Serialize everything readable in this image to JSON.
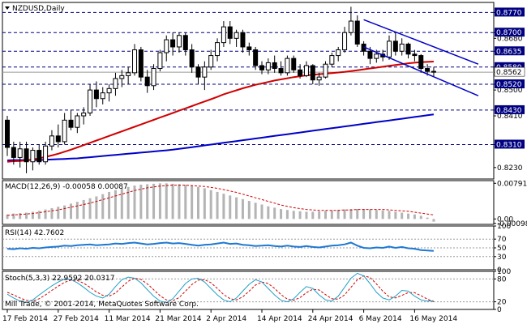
{
  "chart_data": [
    {
      "type": "candlestick",
      "symbol_label": "NZDUSD,Daily",
      "ylim": [
        0.819,
        0.8805
      ],
      "price_ticks": [
        "0.8770",
        "0.8700",
        "0.8680",
        "0.8635",
        "0.8580",
        "0.8562",
        "0.8520",
        "0.8500",
        "0.8430",
        "0.8410",
        "0.8310",
        "0.8230"
      ],
      "key_levels": [
        {
          "value": 0.877,
          "label": "0.8770"
        },
        {
          "value": 0.87,
          "label": "0.8700"
        },
        {
          "value": 0.8635,
          "label": "0.8635"
        },
        {
          "value": 0.858,
          "label": "0.8580"
        },
        {
          "value": 0.852,
          "label": "0.8520"
        },
        {
          "value": 0.843,
          "label": "0.8430"
        },
        {
          "value": 0.831,
          "label": "0.8310"
        }
      ],
      "current_price": {
        "value": 0.8562,
        "label": "0.8562"
      },
      "x_labels": [
        "17 Feb 2014",
        "27 Feb 2014",
        "11 Mar 2014",
        "21 Mar 2014",
        "2 Apr 2014",
        "14 Apr 2014",
        "24 Apr 2014",
        "6 May 2014",
        "16 May 2014"
      ],
      "x_label_bars": [
        0,
        8,
        16,
        24,
        32,
        40,
        48,
        56,
        64
      ],
      "candles": [
        {
          "o": 0.8395,
          "h": 0.841,
          "l": 0.827,
          "c": 0.83
        },
        {
          "o": 0.83,
          "h": 0.832,
          "l": 0.824,
          "c": 0.8265
        },
        {
          "o": 0.8265,
          "h": 0.832,
          "l": 0.823,
          "c": 0.8295
        },
        {
          "o": 0.8295,
          "h": 0.832,
          "l": 0.821,
          "c": 0.825
        },
        {
          "o": 0.825,
          "h": 0.83,
          "l": 0.822,
          "c": 0.829
        },
        {
          "o": 0.829,
          "h": 0.831,
          "l": 0.824,
          "c": 0.825
        },
        {
          "o": 0.825,
          "h": 0.832,
          "l": 0.824,
          "c": 0.8305
        },
        {
          "o": 0.8305,
          "h": 0.836,
          "l": 0.829,
          "c": 0.834
        },
        {
          "o": 0.834,
          "h": 0.838,
          "l": 0.83,
          "c": 0.832
        },
        {
          "o": 0.832,
          "h": 0.842,
          "l": 0.831,
          "c": 0.8395
        },
        {
          "o": 0.8395,
          "h": 0.843,
          "l": 0.836,
          "c": 0.837
        },
        {
          "o": 0.837,
          "h": 0.842,
          "l": 0.835,
          "c": 0.841
        },
        {
          "o": 0.841,
          "h": 0.844,
          "l": 0.838,
          "c": 0.842
        },
        {
          "o": 0.842,
          "h": 0.852,
          "l": 0.841,
          "c": 0.85
        },
        {
          "o": 0.85,
          "h": 0.853,
          "l": 0.844,
          "c": 0.847
        },
        {
          "o": 0.847,
          "h": 0.851,
          "l": 0.845,
          "c": 0.849
        },
        {
          "o": 0.849,
          "h": 0.852,
          "l": 0.846,
          "c": 0.8505
        },
        {
          "o": 0.8505,
          "h": 0.856,
          "l": 0.848,
          "c": 0.854
        },
        {
          "o": 0.854,
          "h": 0.857,
          "l": 0.851,
          "c": 0.855
        },
        {
          "o": 0.855,
          "h": 0.858,
          "l": 0.852,
          "c": 0.856
        },
        {
          "o": 0.856,
          "h": 0.866,
          "l": 0.855,
          "c": 0.864
        },
        {
          "o": 0.864,
          "h": 0.865,
          "l": 0.853,
          "c": 0.8545
        },
        {
          "o": 0.8545,
          "h": 0.857,
          "l": 0.849,
          "c": 0.8515
        },
        {
          "o": 0.8515,
          "h": 0.859,
          "l": 0.85,
          "c": 0.8575
        },
        {
          "o": 0.8575,
          "h": 0.864,
          "l": 0.8565,
          "c": 0.863
        },
        {
          "o": 0.863,
          "h": 0.869,
          "l": 0.86,
          "c": 0.8675
        },
        {
          "o": 0.8675,
          "h": 0.87,
          "l": 0.862,
          "c": 0.865
        },
        {
          "o": 0.865,
          "h": 0.87,
          "l": 0.863,
          "c": 0.869
        },
        {
          "o": 0.869,
          "h": 0.87,
          "l": 0.862,
          "c": 0.864
        },
        {
          "o": 0.864,
          "h": 0.866,
          "l": 0.856,
          "c": 0.858
        },
        {
          "o": 0.858,
          "h": 0.859,
          "l": 0.852,
          "c": 0.8545
        },
        {
          "o": 0.8545,
          "h": 0.86,
          "l": 0.85,
          "c": 0.858
        },
        {
          "o": 0.858,
          "h": 0.864,
          "l": 0.857,
          "c": 0.862
        },
        {
          "o": 0.862,
          "h": 0.868,
          "l": 0.86,
          "c": 0.8665
        },
        {
          "o": 0.8665,
          "h": 0.874,
          "l": 0.865,
          "c": 0.872
        },
        {
          "o": 0.872,
          "h": 0.874,
          "l": 0.866,
          "c": 0.868
        },
        {
          "o": 0.868,
          "h": 0.871,
          "l": 0.865,
          "c": 0.87
        },
        {
          "o": 0.87,
          "h": 0.871,
          "l": 0.863,
          "c": 0.865
        },
        {
          "o": 0.865,
          "h": 0.8665,
          "l": 0.862,
          "c": 0.864
        },
        {
          "o": 0.864,
          "h": 0.865,
          "l": 0.857,
          "c": 0.8585
        },
        {
          "o": 0.8585,
          "h": 0.86,
          "l": 0.8555,
          "c": 0.857
        },
        {
          "o": 0.857,
          "h": 0.861,
          "l": 0.8555,
          "c": 0.8595
        },
        {
          "o": 0.8595,
          "h": 0.862,
          "l": 0.856,
          "c": 0.8575
        },
        {
          "o": 0.8575,
          "h": 0.86,
          "l": 0.855,
          "c": 0.856
        },
        {
          "o": 0.856,
          "h": 0.862,
          "l": 0.855,
          "c": 0.861
        },
        {
          "o": 0.861,
          "h": 0.862,
          "l": 0.856,
          "c": 0.857
        },
        {
          "o": 0.857,
          "h": 0.859,
          "l": 0.854,
          "c": 0.855
        },
        {
          "o": 0.855,
          "h": 0.86,
          "l": 0.8545,
          "c": 0.8585
        },
        {
          "o": 0.8585,
          "h": 0.859,
          "l": 0.852,
          "c": 0.8535
        },
        {
          "o": 0.8535,
          "h": 0.856,
          "l": 0.8515,
          "c": 0.8545
        },
        {
          "o": 0.8545,
          "h": 0.86,
          "l": 0.854,
          "c": 0.859
        },
        {
          "o": 0.859,
          "h": 0.863,
          "l": 0.858,
          "c": 0.862
        },
        {
          "o": 0.862,
          "h": 0.865,
          "l": 0.86,
          "c": 0.864
        },
        {
          "o": 0.864,
          "h": 0.872,
          "l": 0.863,
          "c": 0.87
        },
        {
          "o": 0.87,
          "h": 0.879,
          "l": 0.869,
          "c": 0.874
        },
        {
          "o": 0.874,
          "h": 0.876,
          "l": 0.865,
          "c": 0.866
        },
        {
          "o": 0.866,
          "h": 0.867,
          "l": 0.862,
          "c": 0.8635
        },
        {
          "o": 0.8635,
          "h": 0.865,
          "l": 0.859,
          "c": 0.861
        },
        {
          "o": 0.861,
          "h": 0.864,
          "l": 0.8595,
          "c": 0.8625
        },
        {
          "o": 0.8625,
          "h": 0.864,
          "l": 0.86,
          "c": 0.8615
        },
        {
          "o": 0.8615,
          "h": 0.869,
          "l": 0.8605,
          "c": 0.867
        },
        {
          "o": 0.867,
          "h": 0.87,
          "l": 0.862,
          "c": 0.8635
        },
        {
          "o": 0.8635,
          "h": 0.868,
          "l": 0.862,
          "c": 0.866
        },
        {
          "o": 0.866,
          "h": 0.8665,
          "l": 0.861,
          "c": 0.8625
        },
        {
          "o": 0.8625,
          "h": 0.864,
          "l": 0.86,
          "c": 0.862
        },
        {
          "o": 0.862,
          "h": 0.8625,
          "l": 0.856,
          "c": 0.8575
        },
        {
          "o": 0.8575,
          "h": 0.859,
          "l": 0.855,
          "c": 0.8565
        },
        {
          "o": 0.8565,
          "h": 0.858,
          "l": 0.8545,
          "c": 0.8562
        }
      ],
      "sma_red": [
        0.825,
        0.8252,
        0.8253,
        0.8255,
        0.8258,
        0.8262,
        0.8267,
        0.8272,
        0.8278,
        0.8285,
        0.8292,
        0.83,
        0.8308,
        0.8316,
        0.8324,
        0.8332,
        0.834,
        0.8348,
        0.8356,
        0.8364,
        0.8372,
        0.838,
        0.8388,
        0.8396,
        0.8404,
        0.8412,
        0.842,
        0.8428,
        0.8436,
        0.8444,
        0.8452,
        0.846,
        0.8468,
        0.8476,
        0.8485,
        0.8492,
        0.8499,
        0.8506,
        0.8512,
        0.8518,
        0.8523,
        0.8528,
        0.8533,
        0.8537,
        0.8541,
        0.8545,
        0.8548,
        0.8551,
        0.8553,
        0.8555,
        0.8557,
        0.8559,
        0.8561,
        0.8563,
        0.8566,
        0.8569,
        0.8572,
        0.8575,
        0.8578,
        0.8581,
        0.8584,
        0.8587,
        0.859,
        0.8593,
        0.8595,
        0.8597,
        0.8598,
        0.8599
      ],
      "sma_blue": [
        0.8255,
        0.8256,
        0.8256,
        0.8256,
        0.8256,
        0.8256,
        0.8257,
        0.8258,
        0.8259,
        0.826,
        0.8261,
        0.8262,
        0.8264,
        0.8266,
        0.8268,
        0.827,
        0.8272,
        0.8274,
        0.8276,
        0.8278,
        0.828,
        0.8282,
        0.8284,
        0.8286,
        0.8288,
        0.829,
        0.8292,
        0.8295,
        0.8298,
        0.8301,
        0.8304,
        0.8307,
        0.831,
        0.8313,
        0.8316,
        0.8319,
        0.8322,
        0.8325,
        0.8328,
        0.8331,
        0.8334,
        0.8337,
        0.834,
        0.8343,
        0.8346,
        0.8349,
        0.8352,
        0.8355,
        0.8358,
        0.8361,
        0.8364,
        0.8367,
        0.837,
        0.8373,
        0.8376,
        0.8379,
        0.8382,
        0.8385,
        0.8388,
        0.8391,
        0.8394,
        0.8397,
        0.84,
        0.8403,
        0.8406,
        0.8409,
        0.8412,
        0.8415
      ],
      "channel_lines": [
        {
          "from_bar": 56,
          "from_price": 0.8745,
          "to_bar": 74,
          "to_price": 0.859
        },
        {
          "from_bar": 56,
          "from_price": 0.865,
          "to_bar": 74,
          "to_price": 0.848
        }
      ]
    },
    {
      "type": "bar",
      "label": "MACD(12,26,9) -0.00058 0.00087",
      "ylim": [
        -0.0012,
        0.0085
      ],
      "tick_labels": [
        "0.00791",
        "0.00",
        "-0.00098"
      ],
      "tick_values": [
        0.00791,
        0.0,
        -0.00098
      ],
      "histogram": [
        0.001,
        0.0012,
        0.0013,
        0.0014,
        0.0016,
        0.0018,
        0.0021,
        0.0024,
        0.0027,
        0.003,
        0.0034,
        0.0038,
        0.0042,
        0.0046,
        0.005,
        0.0055,
        0.006,
        0.0064,
        0.0068,
        0.0071,
        0.0074,
        0.0076,
        0.0077,
        0.0078,
        0.0079,
        0.0079,
        0.0078,
        0.0077,
        0.0076,
        0.0074,
        0.0071,
        0.0068,
        0.0064,
        0.006,
        0.0056,
        0.0052,
        0.0048,
        0.0044,
        0.004,
        0.0036,
        0.0032,
        0.0028,
        0.0025,
        0.0022,
        0.002,
        0.0018,
        0.0017,
        0.0016,
        0.0016,
        0.0017,
        0.0018,
        0.0019,
        0.002,
        0.0021,
        0.0022,
        0.0022,
        0.0022,
        0.0021,
        0.002,
        0.0019,
        0.0018,
        0.0016,
        0.0014,
        0.0012,
        0.001,
        0.0007,
        0.0003,
        -0.0006
      ],
      "signal": [
        0.0008,
        0.0009,
        0.001,
        0.0011,
        0.0012,
        0.0014,
        0.0016,
        0.0018,
        0.002,
        0.0023,
        0.0026,
        0.0029,
        0.0032,
        0.0035,
        0.0039,
        0.0043,
        0.0047,
        0.0051,
        0.0055,
        0.0059,
        0.0063,
        0.0066,
        0.0069,
        0.0071,
        0.0073,
        0.0074,
        0.0075,
        0.0075,
        0.0075,
        0.0074,
        0.0073,
        0.0072,
        0.007,
        0.0068,
        0.0065,
        0.0062,
        0.0059,
        0.0055,
        0.0051,
        0.0047,
        0.0043,
        0.0039,
        0.0035,
        0.0031,
        0.0028,
        0.0025,
        0.0023,
        0.0021,
        0.002,
        0.0019,
        0.0019,
        0.0019,
        0.0019,
        0.002,
        0.002,
        0.0021,
        0.0021,
        0.0021,
        0.0021,
        0.0021,
        0.002,
        0.0019,
        0.0018,
        0.0017,
        0.0015,
        0.0013,
        0.0011,
        0.0009
      ]
    },
    {
      "type": "line",
      "label": "RSI(14) 42.7602",
      "ylim": [
        0,
        100
      ],
      "tick_labels": [
        "100",
        "70",
        "50",
        "30",
        "0"
      ],
      "tick_values": [
        100,
        70,
        50,
        30,
        0
      ],
      "levels": [
        70,
        50,
        30
      ],
      "values": [
        48,
        47,
        49,
        48,
        50,
        49,
        51,
        52,
        53,
        55,
        54,
        56,
        57,
        58,
        56,
        57,
        58,
        60,
        59,
        61,
        62,
        60,
        58,
        59,
        61,
        62,
        60,
        61,
        59,
        57,
        55,
        57,
        58,
        60,
        62,
        59,
        60,
        57,
        56,
        54,
        55,
        56,
        54,
        53,
        55,
        53,
        52,
        54,
        52,
        51,
        53,
        55,
        56,
        58,
        62,
        55,
        50,
        49,
        51,
        50,
        53,
        50,
        52,
        49,
        48,
        45,
        44,
        43
      ]
    },
    {
      "type": "line",
      "label": "Stoch(5,3,3) 22.9592 20.0317",
      "ylim": [
        0,
        100
      ],
      "tick_labels": [
        "100",
        "80",
        "20",
        "0"
      ],
      "tick_values": [
        100,
        80,
        20,
        0
      ],
      "levels": [
        80,
        20
      ],
      "k": [
        40,
        30,
        22,
        18,
        25,
        38,
        50,
        62,
        72,
        80,
        78,
        70,
        58,
        45,
        35,
        30,
        40,
        60,
        78,
        85,
        82,
        70,
        52,
        35,
        22,
        18,
        28,
        48,
        68,
        80,
        82,
        72,
        55,
        38,
        25,
        20,
        30,
        48,
        66,
        78,
        72,
        55,
        38,
        24,
        20,
        28,
        45,
        60,
        55,
        38,
        25,
        22,
        35,
        58,
        82,
        95,
        88,
        68,
        45,
        30,
        25,
        35,
        50,
        48,
        35,
        25,
        22,
        23
      ],
      "d": [
        45,
        38,
        30,
        24,
        22,
        28,
        38,
        50,
        61,
        71,
        77,
        76,
        69,
        58,
        46,
        37,
        35,
        43,
        59,
        74,
        82,
        79,
        67,
        52,
        36,
        25,
        23,
        31,
        48,
        65,
        77,
        78,
        70,
        55,
        39,
        28,
        25,
        33,
        48,
        64,
        72,
        68,
        55,
        39,
        27,
        24,
        31,
        44,
        53,
        51,
        39,
        28,
        27,
        38,
        58,
        78,
        88,
        84,
        67,
        48,
        33,
        30,
        37,
        44,
        44,
        36,
        27,
        20
      ]
    }
  ],
  "watermark": "Mill Trade, © 2001-2014, MetaQuotes Software Corp."
}
